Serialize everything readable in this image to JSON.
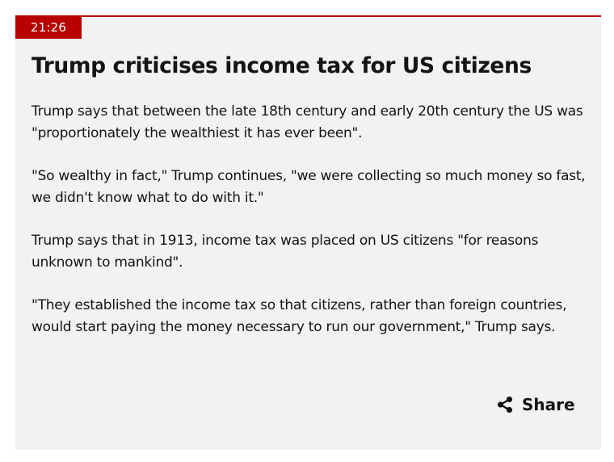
{
  "post": {
    "timestamp": "21:26",
    "headline": "Trump criticises income tax for US citizens",
    "paragraphs": [
      "Trump says that between the late 18th century and early 20th century the US was \"proportionately the wealthiest it has ever been\".",
      "\"So wealthy in fact,\" Trump continues, \"we were collecting so much money so fast, we didn't know what to do with it.\"",
      "Trump says that in 1913, income tax was placed on US citizens \"for reasons unknown to mankind\".",
      "\"They established the income tax so that citizens, rather than foreign countries, would start paying the money necessary to run our government,\" Trump says."
    ],
    "share_label": "Share",
    "share_icon": "share-icon"
  },
  "colors": {
    "accent": "#b80000",
    "card_background": "#f2f2f2",
    "text": "#141414"
  }
}
